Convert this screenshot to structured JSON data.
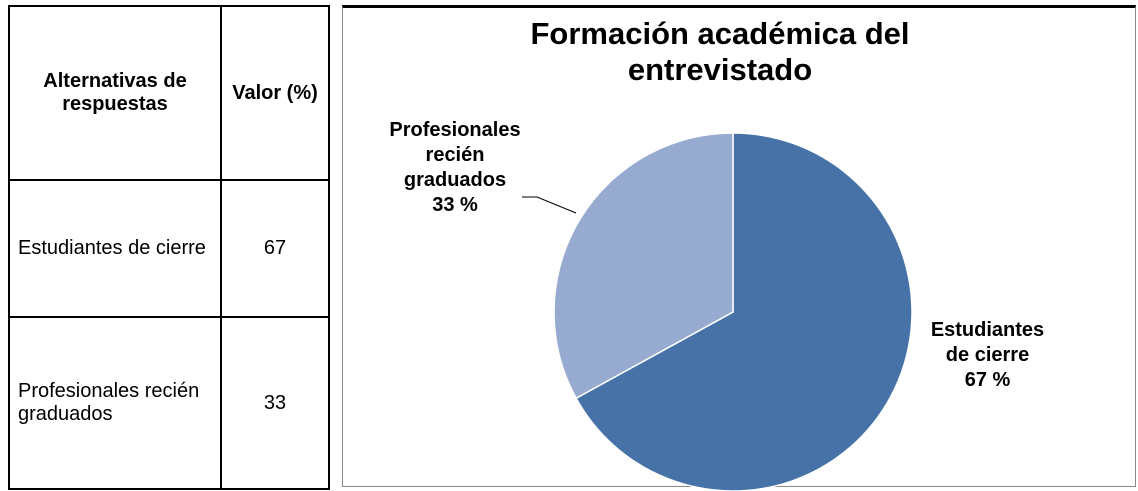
{
  "table": {
    "header": [
      "Alternativas de respuestas",
      "Valor (%)"
    ],
    "rows": [
      [
        "Estudiantes de cierre",
        "67"
      ],
      [
        "Profesionales recién graduados",
        "33"
      ]
    ]
  },
  "chart_data": {
    "type": "pie",
    "title": "Formación académica del entrevistado",
    "categories": [
      "Estudiantes de cierre",
      "Profesionales recién graduados"
    ],
    "values": [
      67,
      33
    ],
    "value_labels": [
      "67 %",
      "33 %"
    ],
    "colors": [
      "#4672a8",
      "#97abd1"
    ]
  }
}
